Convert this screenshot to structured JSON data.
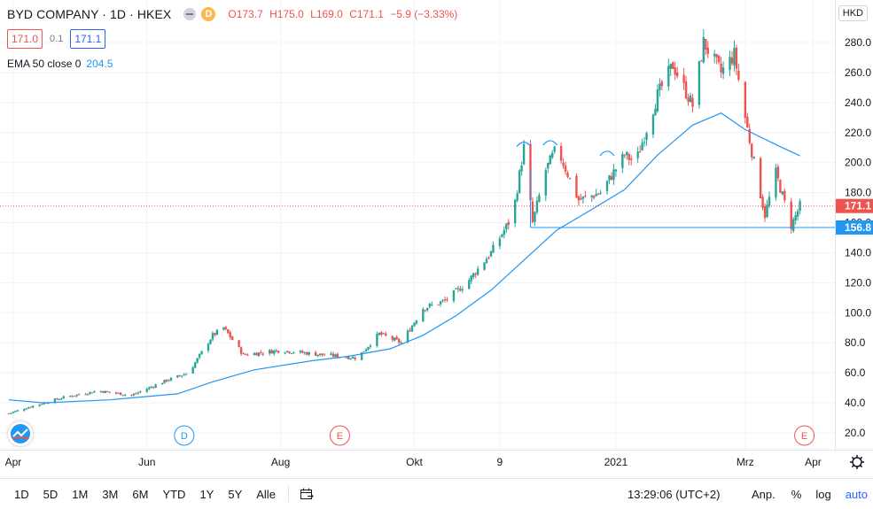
{
  "header": {
    "symbol_title": "BYD COMPANY · 1D · HKEX",
    "badge_letter": "D",
    "ohlc": {
      "open": "O173.7",
      "high": "H175.0",
      "low": "L169.0",
      "close": "C171.1",
      "change": "−5.9 (−3.33%)"
    },
    "bid": "171.0",
    "spread": "0.1",
    "ask": "171.1",
    "indicator_label": "EMA 50 close 0",
    "indicator_value": "204.5",
    "currency": "HKD"
  },
  "colors": {
    "up": "#26a69a",
    "down": "#ef5350",
    "ema": "#2196f3",
    "support": "#2196f3",
    "accent": "#2962ff"
  },
  "price_axis": {
    "labels": [
      "20.0",
      "40.0",
      "60.0",
      "80.0",
      "100.0",
      "120.0",
      "140.0",
      "160.0",
      "180.0",
      "200.0",
      "220.0",
      "240.0",
      "260.0",
      "280.0"
    ],
    "last_price_tag": "171.1",
    "support_tag": "156.8"
  },
  "time_axis": {
    "labels": [
      "Apr",
      "Jun",
      "Aug",
      "Okt",
      "9",
      "2021",
      "Mrz",
      "Apr"
    ]
  },
  "events": [
    {
      "letter": "D",
      "kind": "dividend"
    },
    {
      "letter": "E",
      "kind": "earnings"
    },
    {
      "letter": "E",
      "kind": "earnings"
    }
  ],
  "bottom_bar": {
    "timeframes": [
      "1D",
      "5D",
      "1M",
      "3M",
      "6M",
      "YTD",
      "1Y",
      "5Y",
      "Alle"
    ],
    "clock": "13:29:06 (UTC+2)",
    "adj_label": "Anp.",
    "percent_label": "%",
    "log_label": "log",
    "auto_label": "auto"
  },
  "chart_data": {
    "type": "candlestick",
    "symbol": "BYD COMPANY",
    "interval": "1D",
    "exchange": "HKEX",
    "x_range": [
      "2020-03-30",
      "2021-03-31"
    ],
    "y_range": [
      10,
      290
    ],
    "grid": true,
    "ema50_points": [
      {
        "x": "2020-03-30",
        "y": 42
      },
      {
        "x": "2020-04-15",
        "y": 40
      },
      {
        "x": "2020-05-15",
        "y": 42
      },
      {
        "x": "2020-06-15",
        "y": 46
      },
      {
        "x": "2020-07-01",
        "y": 54
      },
      {
        "x": "2020-07-20",
        "y": 62
      },
      {
        "x": "2020-08-15",
        "y": 68
      },
      {
        "x": "2020-09-01",
        "y": 71
      },
      {
        "x": "2020-09-20",
        "y": 76
      },
      {
        "x": "2020-10-05",
        "y": 85
      },
      {
        "x": "2020-10-20",
        "y": 98
      },
      {
        "x": "2020-11-05",
        "y": 115
      },
      {
        "x": "2020-11-20",
        "y": 135
      },
      {
        "x": "2020-12-05",
        "y": 155
      },
      {
        "x": "2020-12-20",
        "y": 168
      },
      {
        "x": "2021-01-05",
        "y": 182
      },
      {
        "x": "2021-01-20",
        "y": 205
      },
      {
        "x": "2021-02-05",
        "y": 225
      },
      {
        "x": "2021-02-18",
        "y": 233
      },
      {
        "x": "2021-03-01",
        "y": 222
      },
      {
        "x": "2021-03-15",
        "y": 212
      },
      {
        "x": "2021-03-26",
        "y": 204.5
      }
    ],
    "price_path": [
      {
        "x": "2020-03-30",
        "y": 33
      },
      {
        "x": "2020-04-10",
        "y": 38
      },
      {
        "x": "2020-04-25",
        "y": 44
      },
      {
        "x": "2020-05-10",
        "y": 48
      },
      {
        "x": "2020-05-25",
        "y": 45
      },
      {
        "x": "2020-06-10",
        "y": 55
      },
      {
        "x": "2020-06-20",
        "y": 60
      },
      {
        "x": "2020-07-01",
        "y": 85
      },
      {
        "x": "2020-07-06",
        "y": 90
      },
      {
        "x": "2020-07-15",
        "y": 72
      },
      {
        "x": "2020-08-01",
        "y": 75
      },
      {
        "x": "2020-08-20",
        "y": 72
      },
      {
        "x": "2020-09-05",
        "y": 70
      },
      {
        "x": "2020-09-15",
        "y": 86
      },
      {
        "x": "2020-09-25",
        "y": 80
      },
      {
        "x": "2020-10-05",
        "y": 103
      },
      {
        "x": "2020-10-15",
        "y": 108
      },
      {
        "x": "2020-10-25",
        "y": 120
      },
      {
        "x": "2020-11-05",
        "y": 140
      },
      {
        "x": "2020-11-15",
        "y": 165
      },
      {
        "x": "2020-11-20",
        "y": 210
      },
      {
        "x": "2020-11-24",
        "y": 160
      },
      {
        "x": "2020-11-30",
        "y": 195
      },
      {
        "x": "2020-12-05",
        "y": 210
      },
      {
        "x": "2020-12-15",
        "y": 175
      },
      {
        "x": "2020-12-25",
        "y": 180
      },
      {
        "x": "2021-01-05",
        "y": 205
      },
      {
        "x": "2021-01-10",
        "y": 200
      },
      {
        "x": "2021-01-20",
        "y": 245
      },
      {
        "x": "2021-01-27",
        "y": 265
      },
      {
        "x": "2021-02-05",
        "y": 238
      },
      {
        "x": "2021-02-10",
        "y": 280
      },
      {
        "x": "2021-02-18",
        "y": 260
      },
      {
        "x": "2021-02-24",
        "y": 272
      },
      {
        "x": "2021-03-01",
        "y": 230
      },
      {
        "x": "2021-03-05",
        "y": 200
      },
      {
        "x": "2021-03-10",
        "y": 165
      },
      {
        "x": "2021-03-15",
        "y": 193
      },
      {
        "x": "2021-03-22",
        "y": 158
      },
      {
        "x": "2021-03-26",
        "y": 171.1
      }
    ],
    "horizontal_lines": [
      {
        "y": 171.1,
        "label": "171.1",
        "style": "dotted"
      },
      {
        "y": 156.8,
        "label": "156.8",
        "style": "solid"
      }
    ]
  }
}
